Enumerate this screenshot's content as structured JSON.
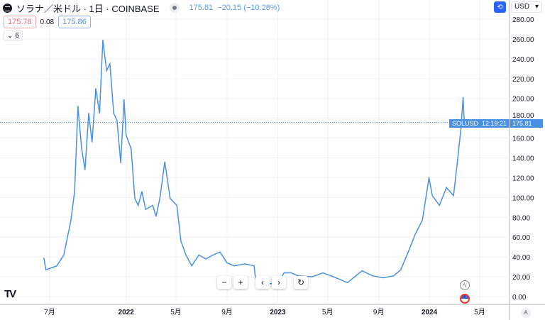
{
  "header": {
    "title": "ソラナ／米ドル · 1日 · COINBASE",
    "last": "175.81",
    "change": "−20.15 (−10.28%)"
  },
  "trade": {
    "sell": "175.78",
    "spread": "0.08",
    "buy": "175.86"
  },
  "indicators": {
    "label": "6"
  },
  "currency": "USD",
  "price_label": {
    "symbol": "SOLUSD",
    "price": "175.81",
    "countdown": "12:19:21"
  },
  "colors": {
    "line": "#4a90e2",
    "grid": "#f0f3fa"
  },
  "toolbar": {
    "zoom_out": "−",
    "zoom_in": "+",
    "left": "‹",
    "right": "›",
    "reset": "↻"
  },
  "auto_scale": "A",
  "chart_data": {
    "type": "line",
    "ylim": [
      0,
      280
    ],
    "y_ticks": [
      "0.00",
      "20.00",
      "40.00",
      "60.00",
      "80.00",
      "100.00",
      "120.00",
      "140.00",
      "160.00",
      "180.00",
      "200.00",
      "220.00",
      "240.00",
      "260.00",
      "280.00"
    ],
    "x_ticks": [
      {
        "label": "7月",
        "date": "2021-07-01"
      },
      {
        "label": "2022",
        "date": "2022-01-01"
      },
      {
        "label": "5月",
        "date": "2022-05-01"
      },
      {
        "label": "9月",
        "date": "2022-09-01"
      },
      {
        "label": "2023",
        "date": "2023-01-01"
      },
      {
        "label": "5月",
        "date": "2023-05-01"
      },
      {
        "label": "9月",
        "date": "2023-09-01"
      },
      {
        "label": "2024",
        "date": "2024-01-01"
      },
      {
        "label": "5月",
        "date": "2024-05-01"
      }
    ],
    "series": [
      {
        "name": "SOLUSD",
        "points": [
          [
            "2021-06-17",
            39
          ],
          [
            "2021-06-22",
            27
          ],
          [
            "2021-07-18",
            31
          ],
          [
            "2021-08-04",
            42
          ],
          [
            "2021-08-21",
            77
          ],
          [
            "2021-08-30",
            106
          ],
          [
            "2021-09-07",
            192
          ],
          [
            "2021-09-16",
            149
          ],
          [
            "2021-09-24",
            128
          ],
          [
            "2021-10-03",
            185
          ],
          [
            "2021-10-11",
            156
          ],
          [
            "2021-10-20",
            210
          ],
          [
            "2021-10-29",
            185
          ],
          [
            "2021-11-06",
            259
          ],
          [
            "2021-11-15",
            228
          ],
          [
            "2021-11-23",
            235
          ],
          [
            "2021-12-02",
            185
          ],
          [
            "2021-12-10",
            178
          ],
          [
            "2021-12-19",
            135
          ],
          [
            "2021-12-27",
            199
          ],
          [
            "2022-01-01",
            163
          ],
          [
            "2022-01-13",
            149
          ],
          [
            "2022-01-22",
            99
          ],
          [
            "2022-01-30",
            92
          ],
          [
            "2022-02-08",
            106
          ],
          [
            "2022-02-17",
            88
          ],
          [
            "2022-03-06",
            92
          ],
          [
            "2022-03-14",
            81
          ],
          [
            "2022-03-23",
            99
          ],
          [
            "2022-04-04",
            136
          ],
          [
            "2022-04-17",
            99
          ],
          [
            "2022-05-03",
            92
          ],
          [
            "2022-05-13",
            56
          ],
          [
            "2022-05-25",
            42
          ],
          [
            "2022-06-08",
            31
          ],
          [
            "2022-06-25",
            42
          ],
          [
            "2022-07-12",
            38
          ],
          [
            "2022-07-29",
            42
          ],
          [
            "2022-08-15",
            45
          ],
          [
            "2022-09-01",
            34
          ],
          [
            "2022-09-18",
            31
          ],
          [
            "2022-10-14",
            33
          ],
          [
            "2022-11-05",
            31
          ],
          [
            "2022-11-08",
            20
          ],
          [
            "2022-11-12",
            13
          ],
          [
            "2023-01-02",
            13
          ],
          [
            "2023-01-16",
            24
          ],
          [
            "2023-02-02",
            24
          ],
          [
            "2023-02-19",
            21
          ],
          [
            "2023-03-25",
            20
          ],
          [
            "2023-04-20",
            24
          ],
          [
            "2023-05-15",
            20
          ],
          [
            "2023-06-18",
            14
          ],
          [
            "2023-07-05",
            20
          ],
          [
            "2023-07-23",
            26
          ],
          [
            "2023-08-17",
            21
          ],
          [
            "2023-09-12",
            19
          ],
          [
            "2023-10-07",
            21
          ],
          [
            "2023-10-24",
            27
          ],
          [
            "2023-11-11",
            45
          ],
          [
            "2023-11-28",
            63
          ],
          [
            "2023-12-15",
            77
          ],
          [
            "2023-12-31",
            120
          ],
          [
            "2024-01-08",
            102
          ],
          [
            "2024-01-25",
            92
          ],
          [
            "2024-02-11",
            110
          ],
          [
            "2024-02-28",
            102
          ],
          [
            "2024-03-08",
            135
          ],
          [
            "2024-03-17",
            170
          ],
          [
            "2024-03-22",
            201
          ],
          [
            "2024-03-25",
            176
          ]
        ]
      }
    ]
  }
}
